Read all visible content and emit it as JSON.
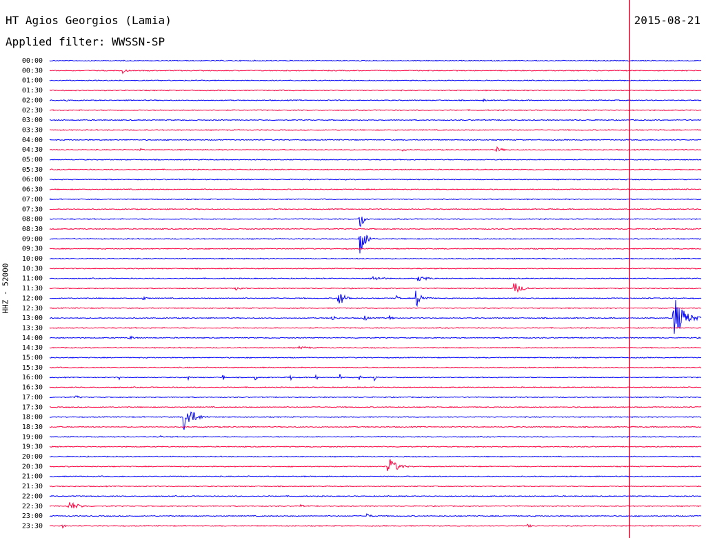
{
  "header": {
    "station": "HT Agios Georgios (Lamia)",
    "filter": "Applied filter: WWSSN-SP",
    "date": "2015-08-21",
    "channel": "HHZ - 52000"
  },
  "colors": {
    "trace_a": "#0000ff",
    "trace_b": "#ff0040",
    "marker": "#e0002a",
    "text": "#000000"
  },
  "chart_data": {
    "type": "line",
    "subtype": "helicorder",
    "title": "HT Agios Georgios (Lamia)",
    "subtitle": "Applied filter: WWSSN-SP",
    "ylabel": "HHZ - 52000",
    "grid": false,
    "legend": "none",
    "rows": [
      "00:00",
      "00:30",
      "01:00",
      "01:30",
      "02:00",
      "02:30",
      "03:00",
      "03:30",
      "04:00",
      "04:30",
      "05:00",
      "05:30",
      "06:00",
      "06:30",
      "07:00",
      "07:30",
      "08:00",
      "08:30",
      "09:00",
      "09:30",
      "10:00",
      "10:30",
      "11:00",
      "11:30",
      "12:00",
      "12:30",
      "13:00",
      "13:30",
      "14:00",
      "14:30",
      "15:00",
      "15:30",
      "16:00",
      "16:30",
      "17:00",
      "17:30",
      "18:00",
      "18:30",
      "19:00",
      "19:30",
      "20:00",
      "20:30",
      "21:00",
      "21:30",
      "22:00",
      "22:30",
      "23:00",
      "23:30"
    ],
    "row_colors": [
      "blue",
      "red"
    ],
    "row_duration_minutes": 30,
    "marker_minute": 26.7,
    "events": [
      {
        "row": 1,
        "minute": 3.4,
        "amp": 4,
        "dur": 0.5
      },
      {
        "row": 4,
        "minute": 0.8,
        "amp": 2,
        "dur": 0.2
      },
      {
        "row": 4,
        "minute": 20.0,
        "amp": 2,
        "dur": 0.4
      },
      {
        "row": 9,
        "minute": 4.2,
        "amp": 2,
        "dur": 0.5
      },
      {
        "row": 9,
        "minute": 16.3,
        "amp": 2,
        "dur": 0.5
      },
      {
        "row": 9,
        "minute": 20.6,
        "amp": 4,
        "dur": 0.8
      },
      {
        "row": 16,
        "minute": 14.3,
        "amp": 15,
        "dur": 0.5
      },
      {
        "row": 18,
        "minute": 14.3,
        "amp": 22,
        "dur": 0.7
      },
      {
        "row": 22,
        "minute": 14.8,
        "amp": 4,
        "dur": 1.6
      },
      {
        "row": 22,
        "minute": 17.0,
        "amp": 4,
        "dur": 1.4
      },
      {
        "row": 23,
        "minute": 8.6,
        "amp": 3,
        "dur": 1.2
      },
      {
        "row": 23,
        "minute": 21.4,
        "amp": 9,
        "dur": 1.0
      },
      {
        "row": 24,
        "minute": 4.3,
        "amp": 3,
        "dur": 0.6
      },
      {
        "row": 24,
        "minute": 13.3,
        "amp": 12,
        "dur": 0.8
      },
      {
        "row": 24,
        "minute": 16.0,
        "amp": 4,
        "dur": 0.4
      },
      {
        "row": 24,
        "minute": 16.9,
        "amp": 12,
        "dur": 0.8
      },
      {
        "row": 26,
        "minute": 13.0,
        "amp": 5,
        "dur": 0.5
      },
      {
        "row": 26,
        "minute": 14.5,
        "amp": 5,
        "dur": 0.5
      },
      {
        "row": 26,
        "minute": 15.7,
        "amp": 4,
        "dur": 0.3
      },
      {
        "row": 26,
        "minute": 28.7,
        "amp": 35,
        "dur": 1.3
      },
      {
        "row": 28,
        "minute": 3.7,
        "amp": 3,
        "dur": 0.8
      },
      {
        "row": 29,
        "minute": 11.5,
        "amp": 2,
        "dur": 2.5
      },
      {
        "row": 32,
        "minute": 3.2,
        "amp": 6,
        "dur": 0.1
      },
      {
        "row": 32,
        "minute": 6.4,
        "amp": 6,
        "dur": 0.1
      },
      {
        "row": 32,
        "minute": 8.0,
        "amp": 6,
        "dur": 0.1
      },
      {
        "row": 32,
        "minute": 9.5,
        "amp": 8,
        "dur": 0.1
      },
      {
        "row": 32,
        "minute": 11.1,
        "amp": 6,
        "dur": 0.1
      },
      {
        "row": 32,
        "minute": 12.3,
        "amp": 5,
        "dur": 0.1
      },
      {
        "row": 32,
        "minute": 13.4,
        "amp": 5,
        "dur": 0.1
      },
      {
        "row": 32,
        "minute": 14.3,
        "amp": 5,
        "dur": 0.1
      },
      {
        "row": 32,
        "minute": 15.0,
        "amp": 5,
        "dur": 0.1
      },
      {
        "row": 34,
        "minute": 1.2,
        "amp": 3,
        "dur": 0.6
      },
      {
        "row": 36,
        "minute": 6.2,
        "amp": 22,
        "dur": 1.1
      },
      {
        "row": 38,
        "minute": 5.1,
        "amp": 2,
        "dur": 0.5
      },
      {
        "row": 40,
        "minute": 17.8,
        "amp": 2,
        "dur": 0.2
      },
      {
        "row": 41,
        "minute": 15.6,
        "amp": 14,
        "dur": 1.1
      },
      {
        "row": 45,
        "minute": 0.9,
        "amp": 7,
        "dur": 1.3
      },
      {
        "row": 45,
        "minute": 11.6,
        "amp": 3,
        "dur": 0.3
      },
      {
        "row": 46,
        "minute": 14.6,
        "amp": 4,
        "dur": 0.6
      },
      {
        "row": 47,
        "minute": 0.6,
        "amp": 3,
        "dur": 0.4
      },
      {
        "row": 47,
        "minute": 22.0,
        "amp": 3,
        "dur": 0.6
      }
    ]
  }
}
